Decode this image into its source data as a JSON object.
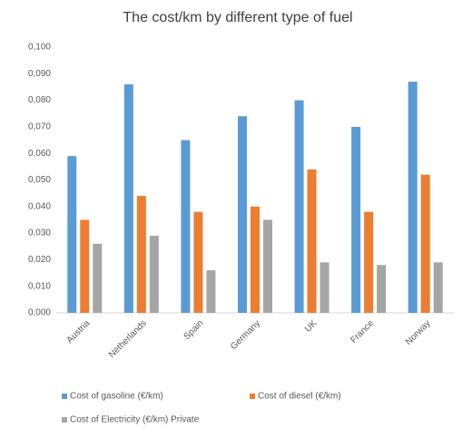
{
  "chart_data": {
    "type": "bar",
    "title": "The cost/km by different type of fuel",
    "categories": [
      "Austria",
      "Netherlands",
      "Spain",
      "Germany",
      "UK",
      "France",
      "Norway"
    ],
    "series": [
      {
        "name": "Cost of gasoline (€/km)",
        "color": "#5b9bd5",
        "values": [
          0.059,
          0.086,
          0.065,
          0.074,
          0.08,
          0.07,
          0.087
        ]
      },
      {
        "name": "Cost of diesel (€/km)",
        "color": "#ed7d31",
        "values": [
          0.035,
          0.044,
          0.038,
          0.04,
          0.054,
          0.038,
          0.052
        ]
      },
      {
        "name": "Cost of Electricity (€/km) Private",
        "color": "#a5a5a5",
        "values": [
          0.026,
          0.029,
          0.016,
          0.035,
          0.019,
          0.018,
          0.019
        ]
      }
    ],
    "ylim": [
      0,
      0.1
    ],
    "yticks": [
      {
        "value": 0,
        "label": "0,000"
      },
      {
        "value": 0.01,
        "label": "0,010"
      },
      {
        "value": 0.02,
        "label": "0,020"
      },
      {
        "value": 0.03,
        "label": "0,030"
      },
      {
        "value": 0.04,
        "label": "0,040"
      },
      {
        "value": 0.05,
        "label": "0,050"
      },
      {
        "value": 0.06,
        "label": "0,060"
      },
      {
        "value": 0.07,
        "label": "0,070"
      },
      {
        "value": 0.08,
        "label": "0,080"
      },
      {
        "value": 0.09,
        "label": "0,090"
      },
      {
        "value": 0.1,
        "label": "0,100"
      }
    ],
    "grid": false
  }
}
